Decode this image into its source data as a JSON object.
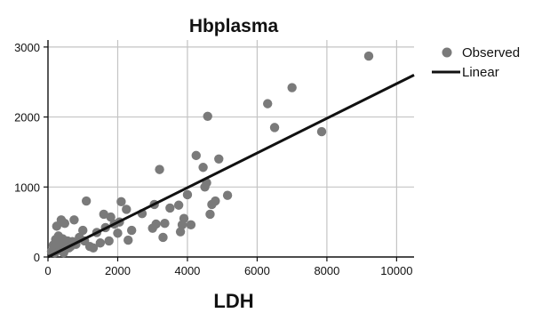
{
  "chart_data": {
    "type": "scatter",
    "title": "Hbplasma",
    "xlabel": "LDH",
    "ylabel": "",
    "xlim": [
      0,
      10500
    ],
    "ylim": [
      0,
      3100
    ],
    "xticks": [
      0,
      2000,
      4000,
      6000,
      8000,
      10000
    ],
    "yticks": [
      0,
      1000,
      2000,
      3000
    ],
    "grid": true,
    "legend_position": "right",
    "colors": {
      "points": "#7a7a7a",
      "line": "#111111",
      "grid": "#c4c4c4",
      "axis": "#111111"
    },
    "series": [
      {
        "name": "Observed",
        "kind": "scatter",
        "points": [
          [
            100,
            80
          ],
          [
            150,
            170
          ],
          [
            180,
            120
          ],
          [
            200,
            60
          ],
          [
            220,
            250
          ],
          [
            250,
            440
          ],
          [
            280,
            180
          ],
          [
            300,
            300
          ],
          [
            320,
            220
          ],
          [
            350,
            100
          ],
          [
            380,
            530
          ],
          [
            400,
            150
          ],
          [
            420,
            260
          ],
          [
            450,
            60
          ],
          [
            480,
            480
          ],
          [
            500,
            200
          ],
          [
            520,
            120
          ],
          [
            560,
            230
          ],
          [
            600,
            130
          ],
          [
            650,
            150
          ],
          [
            700,
            220
          ],
          [
            750,
            530
          ],
          [
            800,
            180
          ],
          [
            900,
            280
          ],
          [
            1000,
            380
          ],
          [
            1050,
            230
          ],
          [
            1100,
            800
          ],
          [
            1200,
            150
          ],
          [
            1300,
            130
          ],
          [
            1400,
            350
          ],
          [
            1500,
            200
          ],
          [
            1600,
            610
          ],
          [
            1650,
            420
          ],
          [
            1750,
            230
          ],
          [
            1800,
            570
          ],
          [
            1900,
            470
          ],
          [
            2000,
            340
          ],
          [
            2050,
            500
          ],
          [
            2100,
            790
          ],
          [
            2250,
            680
          ],
          [
            2300,
            240
          ],
          [
            2400,
            380
          ],
          [
            2700,
            620
          ],
          [
            3000,
            410
          ],
          [
            3050,
            750
          ],
          [
            3100,
            470
          ],
          [
            3200,
            1250
          ],
          [
            3300,
            280
          ],
          [
            3350,
            480
          ],
          [
            3500,
            700
          ],
          [
            3750,
            740
          ],
          [
            3800,
            360
          ],
          [
            3850,
            460
          ],
          [
            3900,
            550
          ],
          [
            4000,
            890
          ],
          [
            4100,
            460
          ],
          [
            4250,
            1450
          ],
          [
            4450,
            1280
          ],
          [
            4500,
            1000
          ],
          [
            4550,
            1060
          ],
          [
            4580,
            2010
          ],
          [
            4650,
            610
          ],
          [
            4700,
            750
          ],
          [
            4800,
            800
          ],
          [
            4900,
            1400
          ],
          [
            5150,
            880
          ],
          [
            6300,
            2190
          ],
          [
            6500,
            1850
          ],
          [
            7000,
            2420
          ],
          [
            7850,
            1790
          ],
          [
            9200,
            2870
          ]
        ]
      },
      {
        "name": "Linear",
        "kind": "line",
        "points": [
          [
            0,
            0
          ],
          [
            10500,
            2600
          ]
        ]
      }
    ]
  }
}
